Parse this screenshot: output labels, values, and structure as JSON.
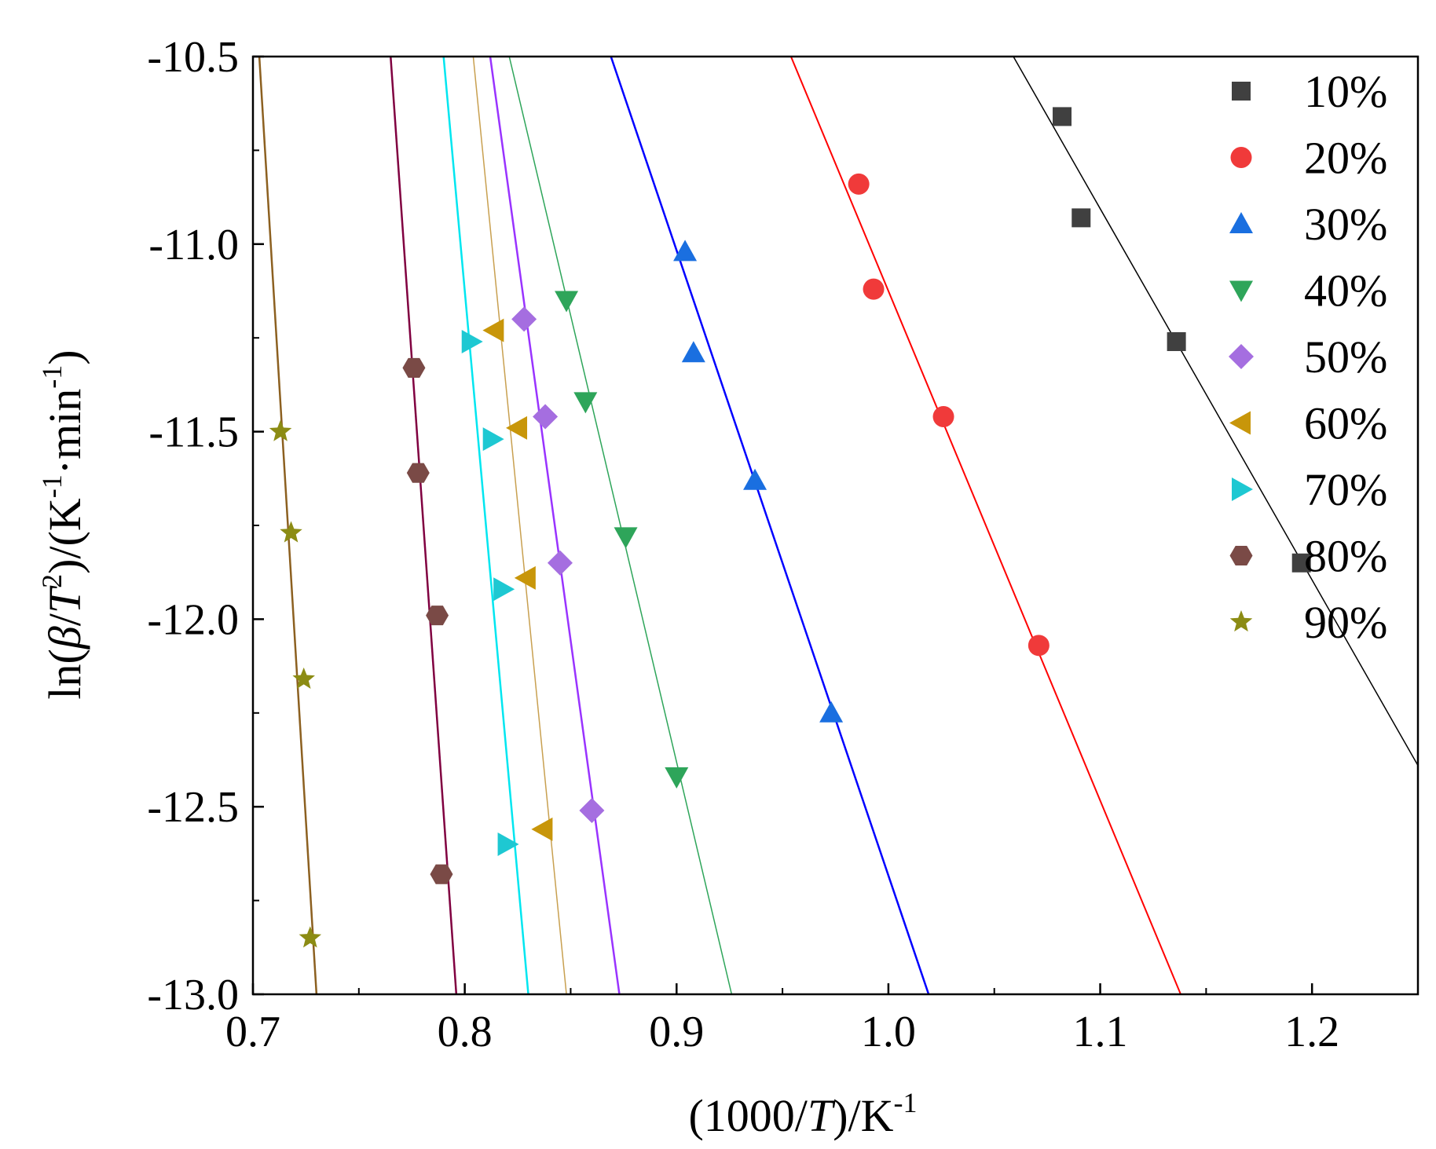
{
  "chart_data": {
    "type": "scatter",
    "fit_lines": true,
    "xlim": [
      0.7,
      1.25
    ],
    "ylim": [
      -13.0,
      -10.5
    ],
    "xticks": [
      0.7,
      0.8,
      0.9,
      1.0,
      1.1,
      1.2
    ],
    "xtick_labels": [
      "0.7",
      "0.8",
      "0.9",
      "1.0",
      "1.1",
      "1.2"
    ],
    "yticks": [
      -10.5,
      -11.0,
      -11.5,
      -12.0,
      -12.5,
      -13.0
    ],
    "ytick_labels": [
      "-10.5",
      "-11.0",
      "-11.5",
      "-12.0",
      "-12.5",
      "-13.0"
    ],
    "xlabel": {
      "pre": "(1000/",
      "italic": "T",
      "post": ")/K",
      "sup": "-1"
    },
    "ylabel": {
      "pre": "ln(",
      "italic1": "β",
      "mid": "/",
      "italic2": "T",
      "sup2": "2",
      "post": ")/(K",
      "sup3": "-1",
      "post2": "·min",
      "sup4": "-1",
      "post3": ")"
    },
    "legend_position": "top-right",
    "series": [
      {
        "name": "10%",
        "marker": "square",
        "color": "#404040",
        "line_color": "#000000",
        "line_width": 1.5,
        "x": [
          1.082,
          1.091,
          1.136,
          1.195
        ],
        "y": [
          -10.66,
          -10.93,
          -11.26,
          -11.85
        ],
        "fit": [
          [
            1.059,
            -10.5
          ],
          [
            1.25,
            -12.39
          ]
        ]
      },
      {
        "name": "20%",
        "marker": "circle",
        "color": "#f03a3a",
        "line_color": "#ff0000",
        "line_width": 2,
        "x": [
          0.986,
          0.993,
          1.026,
          1.071
        ],
        "y": [
          -10.84,
          -11.12,
          -11.46,
          -12.07
        ],
        "fit": [
          [
            0.954,
            -10.5
          ],
          [
            1.138,
            -13.0
          ]
        ]
      },
      {
        "name": "30%",
        "marker": "triangle-up",
        "color": "#1a6fe0",
        "line_color": "#0000ff",
        "line_width": 2.5,
        "x": [
          0.904,
          0.908,
          0.937,
          0.973
        ],
        "y": [
          -11.02,
          -11.29,
          -11.63,
          -12.25
        ],
        "fit": [
          [
            0.869,
            -10.5
          ],
          [
            1.019,
            -13.0
          ]
        ]
      },
      {
        "name": "40%",
        "marker": "triangle-down",
        "color": "#2ea55a",
        "line_color": "#2ea55a",
        "line_width": 1.5,
        "x": [
          0.848,
          0.857,
          0.876,
          0.9
        ],
        "y": [
          -11.15,
          -11.42,
          -11.78,
          -12.42
        ],
        "fit": [
          [
            0.821,
            -10.5
          ],
          [
            0.926,
            -13.0
          ]
        ]
      },
      {
        "name": "50%",
        "marker": "diamond",
        "color": "#a56ee0",
        "line_color": "#9933ff",
        "line_width": 2.5,
        "x": [
          0.828,
          0.838,
          0.845,
          0.86
        ],
        "y": [
          -11.2,
          -11.46,
          -11.85,
          -12.51
        ],
        "fit": [
          [
            0.812,
            -10.5
          ],
          [
            0.873,
            -13.0
          ]
        ]
      },
      {
        "name": "60%",
        "marker": "triangle-left",
        "color": "#c8960a",
        "line_color": "#c8a050",
        "line_width": 1.5,
        "x": [
          0.814,
          0.825,
          0.829,
          0.837
        ],
        "y": [
          -11.23,
          -11.49,
          -11.89,
          -12.56
        ],
        "fit": [
          [
            0.804,
            -10.5
          ],
          [
            0.848,
            -13.0
          ]
        ]
      },
      {
        "name": "70%",
        "marker": "triangle-right",
        "color": "#1ec8d2",
        "line_color": "#00e6f0",
        "line_width": 2.5,
        "x": [
          0.803,
          0.813,
          0.818,
          0.82
        ],
        "y": [
          -11.26,
          -11.52,
          -11.92,
          -12.6
        ],
        "fit": [
          [
            0.79,
            -10.5
          ],
          [
            0.83,
            -13.0
          ]
        ]
      },
      {
        "name": "80%",
        "marker": "hexagon",
        "color": "#7a4a46",
        "line_color": "#800040",
        "line_width": 2.5,
        "x": [
          0.776,
          0.778,
          0.787,
          0.789
        ],
        "y": [
          -11.33,
          -11.61,
          -11.99,
          -12.68
        ],
        "fit": [
          [
            0.765,
            -10.5
          ],
          [
            0.796,
            -13.0
          ]
        ]
      },
      {
        "name": "90%",
        "marker": "star",
        "color": "#8c8c14",
        "line_color": "#8c6020",
        "line_width": 2.5,
        "x": [
          0.713,
          0.718,
          0.724,
          0.727
        ],
        "y": [
          -11.5,
          -11.77,
          -12.16,
          -12.85
        ],
        "fit": [
          [
            0.703,
            -10.5
          ],
          [
            0.73,
            -13.0
          ]
        ]
      }
    ]
  }
}
